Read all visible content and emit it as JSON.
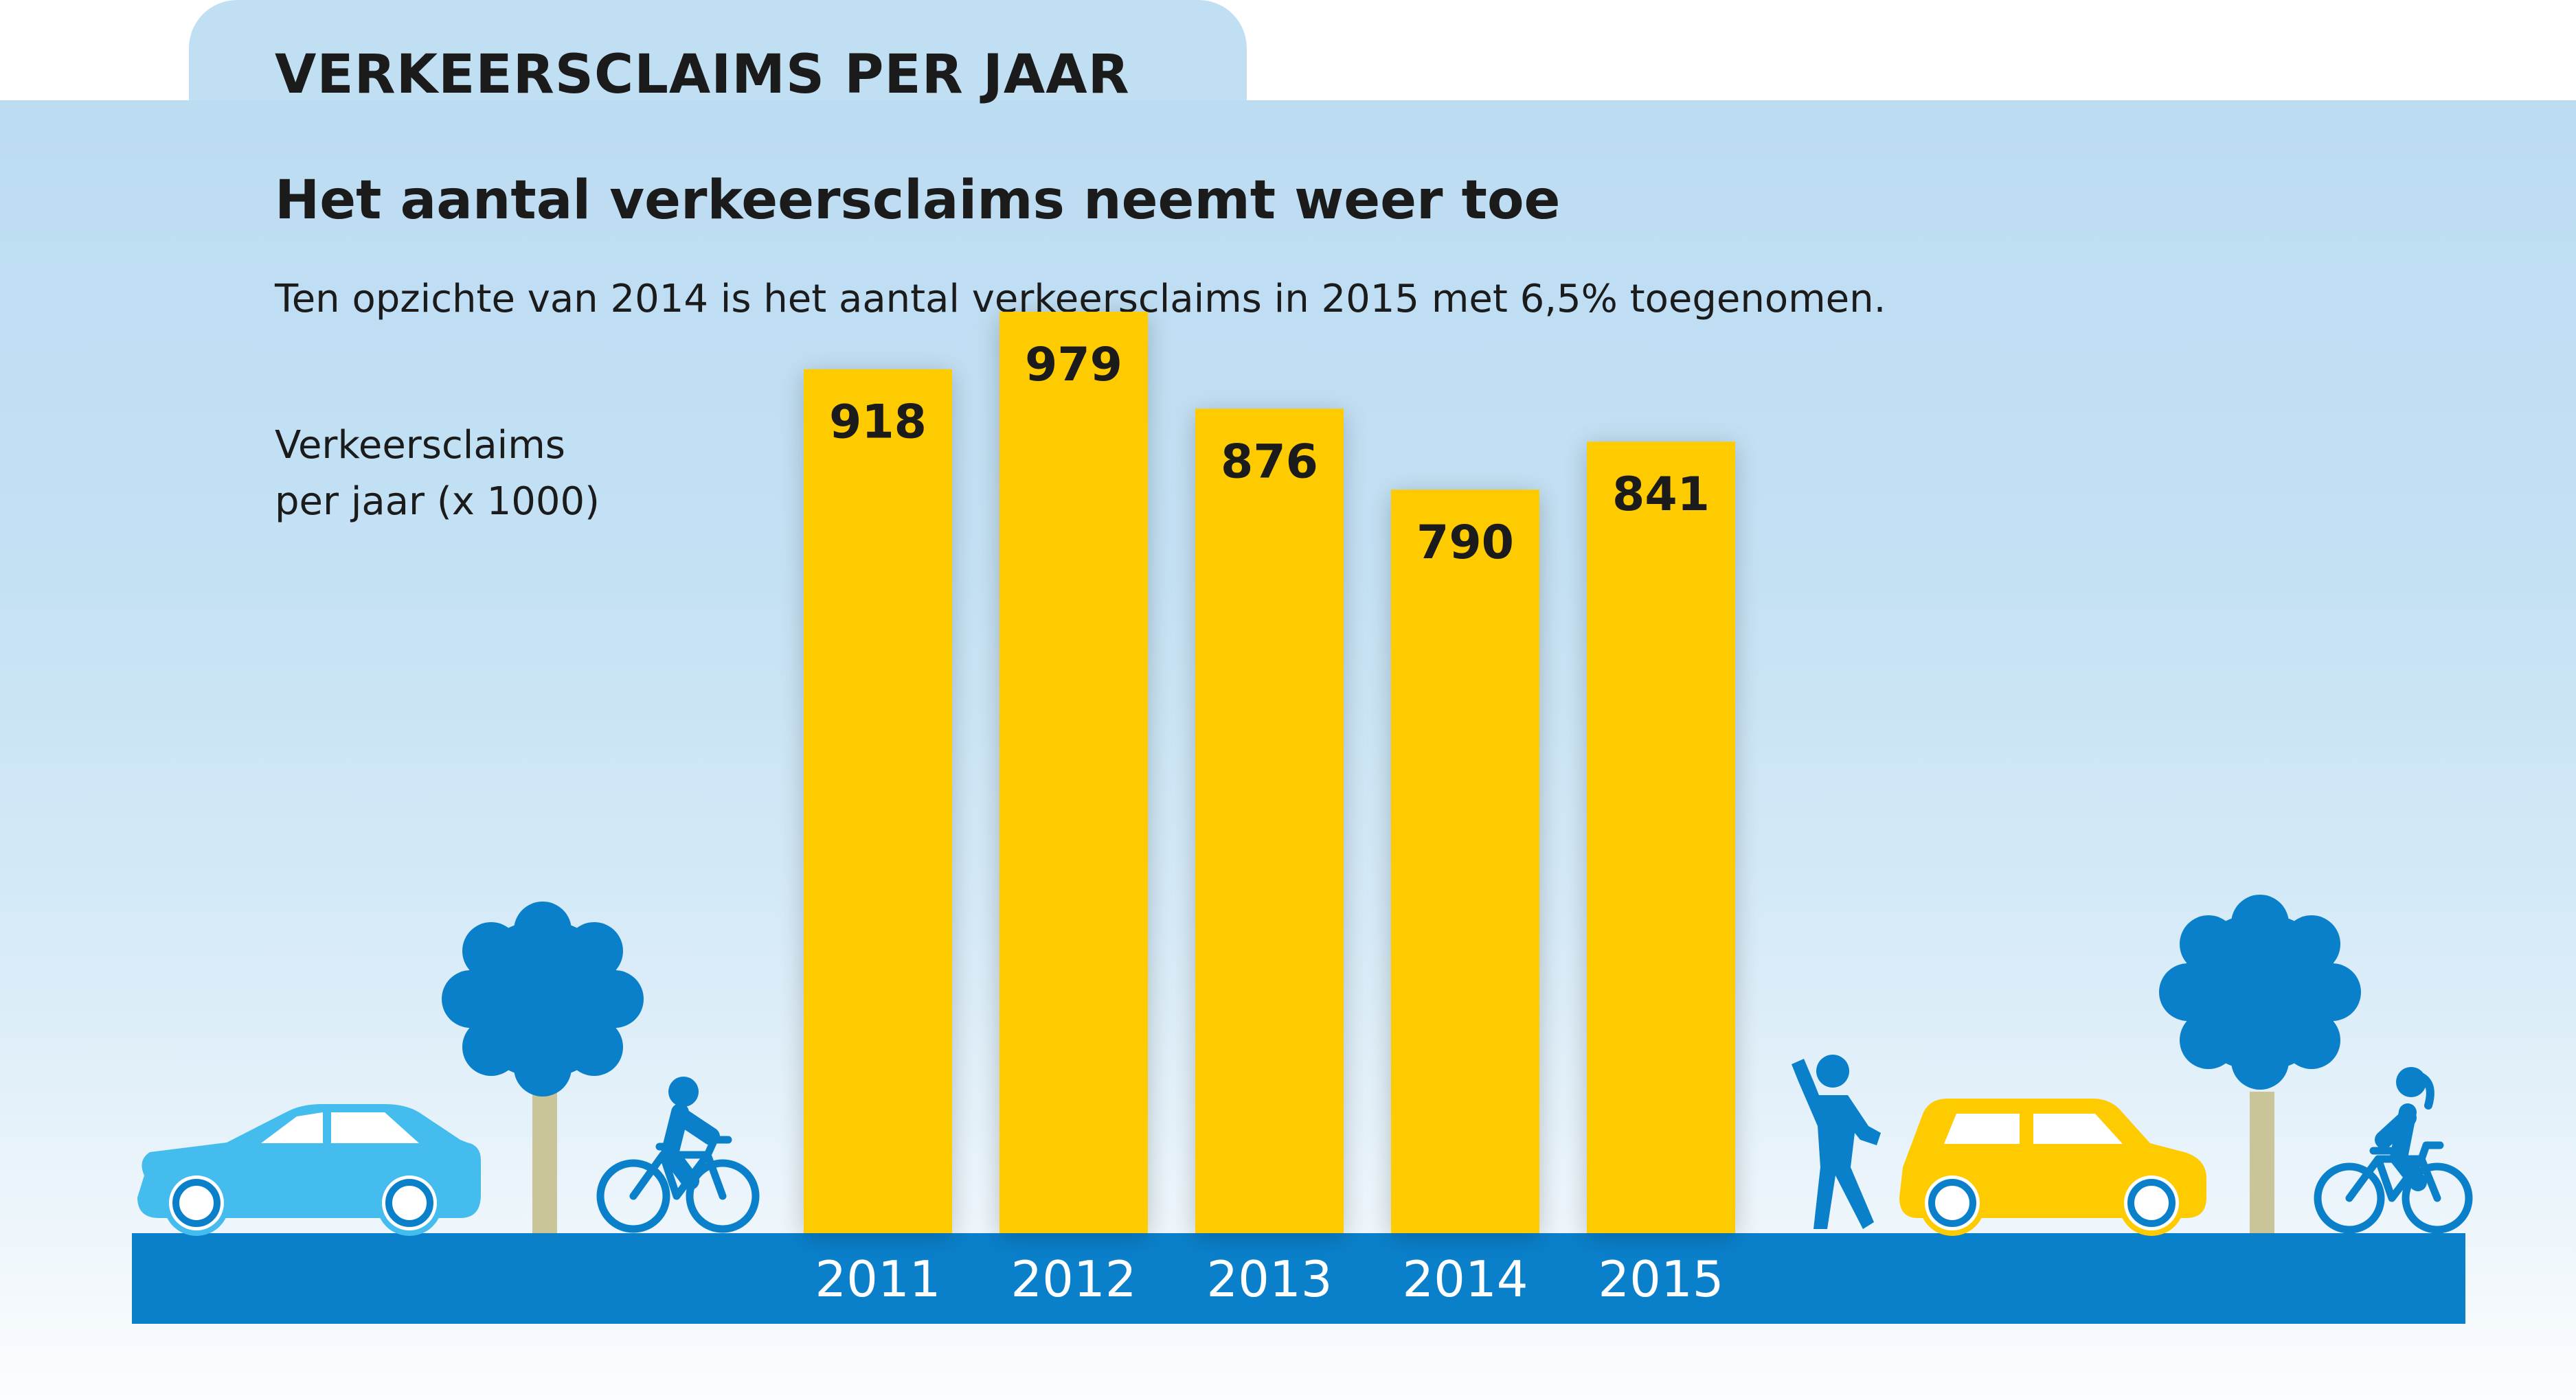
{
  "header": {
    "tab_title": "VERKEERSCLAIMS PER JAAR",
    "headline": "Het aantal verkeersclaims neemt weer toe",
    "subline": "Ten opzichte van 2014 is het aantal verkeersclaims in 2015 met 6,5% toegenomen."
  },
  "colors": {
    "bar": "#fecb00",
    "road": "#0a80cb",
    "sky": "#bcdcf2",
    "tree": "#0a80cb",
    "light_car": "#44bdee",
    "yellow_car": "#fecb00"
  },
  "icons": [
    "car-icon",
    "tree-icon",
    "cyclist-icon",
    "pedestrian-icon",
    "yellow-car-icon",
    "tree-icon",
    "cyclist-icon"
  ],
  "chart_data": {
    "type": "bar",
    "title": "Het aantal verkeersclaims neemt weer toe",
    "subtitle": "Ten opzichte van 2014 is het aantal verkeersclaims in 2015 met 6,5% toegenomen.",
    "ylabel_lines": [
      "Verkeersclaims",
      "per jaar (x 1000)"
    ],
    "xlabel": "",
    "categories": [
      "2011",
      "2012",
      "2013",
      "2014",
      "2015"
    ],
    "values": [
      918,
      979,
      876,
      790,
      841
    ],
    "data_labels": [
      "918",
      "979",
      "876",
      "790",
      "841"
    ],
    "grid": false,
    "legend": "none"
  }
}
